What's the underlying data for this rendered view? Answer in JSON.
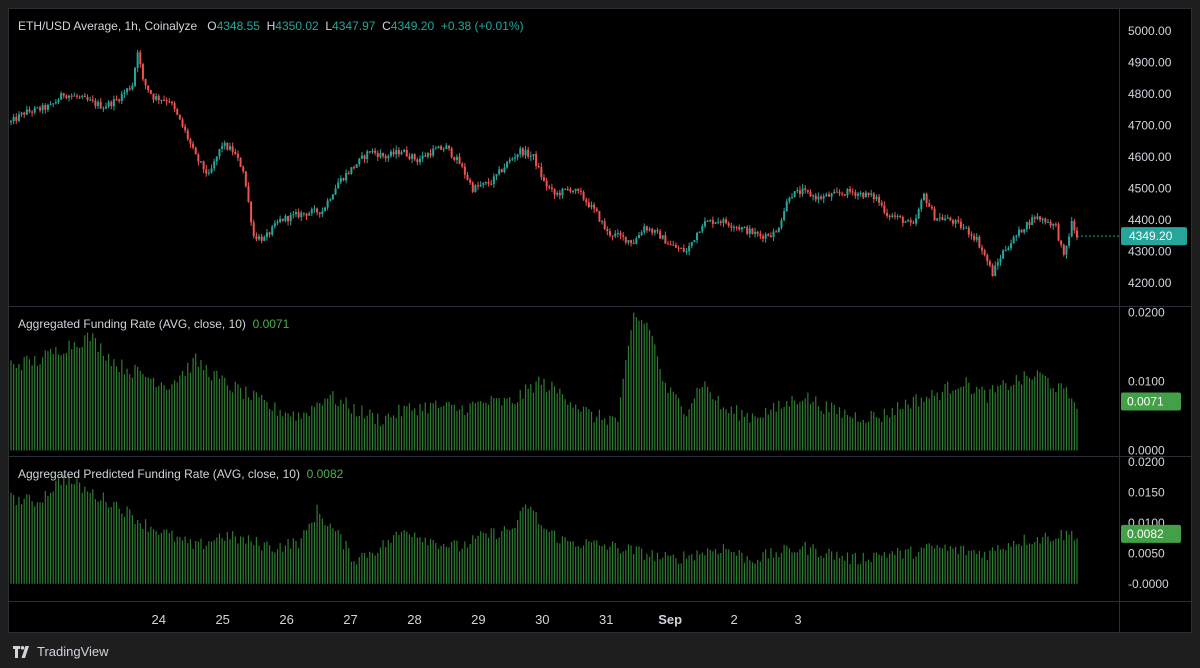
{
  "legend": {
    "price": {
      "name": "ETH/USD Average, 1h, Coinalyze",
      "o_label": "O",
      "o": "4348.55",
      "h_label": "H",
      "h": "4350.02",
      "l_label": "L",
      "l": "4347.97",
      "c_label": "C",
      "c": "4349.20",
      "change": "+0.38 (+0.01%)"
    },
    "funding": {
      "name": "Aggregated Funding Rate (AVG, close, 10)",
      "value": "0.0071"
    },
    "predicted": {
      "name": "Aggregated Predicted Funding Rate (AVG, close, 10)",
      "value": "0.0082"
    }
  },
  "brand": {
    "name": "TradingView",
    "logo_icon": "tradingview-logo-icon"
  },
  "colors": {
    "up": "#26a69a",
    "down": "#ef5350",
    "bar": "#2e7d32",
    "last_price": "#26a69a",
    "funding_badge": "#43a047"
  },
  "chart_data": [
    {
      "type": "candlestick",
      "title": "ETH/USD Average, 1h, Coinalyze",
      "ylim": [
        4150,
        5050
      ],
      "yticks": [
        "5000.00",
        "4900.00",
        "4800.00",
        "4700.00",
        "4600.00",
        "4500.00",
        "4400.00",
        "4300.00",
        "4200.00"
      ],
      "last_price": "4349.20",
      "x_ticks": [
        "24",
        "25",
        "26",
        "27",
        "28",
        "29",
        "30",
        "31",
        "Sep",
        "2",
        "3"
      ],
      "hours_per_day": 24,
      "anchors": [
        [
          0,
          4710
        ],
        [
          5,
          4740
        ],
        [
          15,
          4760
        ],
        [
          20,
          4800
        ],
        [
          25,
          4790
        ],
        [
          35,
          4760
        ],
        [
          40,
          4780
        ],
        [
          46,
          4830
        ],
        [
          48,
          4940
        ],
        [
          50,
          4840
        ],
        [
          54,
          4790
        ],
        [
          60,
          4780
        ],
        [
          66,
          4680
        ],
        [
          70,
          4600
        ],
        [
          75,
          4540
        ],
        [
          80,
          4640
        ],
        [
          84,
          4620
        ],
        [
          88,
          4560
        ],
        [
          92,
          4350
        ],
        [
          96,
          4340
        ],
        [
          102,
          4400
        ],
        [
          110,
          4420
        ],
        [
          118,
          4430
        ],
        [
          124,
          4520
        ],
        [
          130,
          4570
        ],
        [
          136,
          4620
        ],
        [
          142,
          4600
        ],
        [
          148,
          4620
        ],
        [
          154,
          4590
        ],
        [
          160,
          4620
        ],
        [
          165,
          4630
        ],
        [
          170,
          4580
        ],
        [
          175,
          4500
        ],
        [
          182,
          4520
        ],
        [
          188,
          4580
        ],
        [
          193,
          4620
        ],
        [
          198,
          4600
        ],
        [
          202,
          4520
        ],
        [
          206,
          4480
        ],
        [
          212,
          4500
        ],
        [
          216,
          4480
        ],
        [
          222,
          4420
        ],
        [
          226,
          4360
        ],
        [
          230,
          4350
        ],
        [
          236,
          4330
        ],
        [
          240,
          4380
        ],
        [
          246,
          4350
        ],
        [
          250,
          4320
        ],
        [
          256,
          4300
        ],
        [
          262,
          4390
        ],
        [
          268,
          4400
        ],
        [
          272,
          4390
        ],
        [
          278,
          4370
        ],
        [
          284,
          4350
        ],
        [
          290,
          4360
        ],
        [
          295,
          4480
        ],
        [
          300,
          4490
        ],
        [
          306,
          4470
        ],
        [
          312,
          4480
        ],
        [
          318,
          4490
        ],
        [
          324,
          4480
        ],
        [
          328,
          4470
        ],
        [
          332,
          4420
        ],
        [
          338,
          4400
        ],
        [
          342,
          4380
        ],
        [
          346,
          4480
        ],
        [
          350,
          4410
        ],
        [
          356,
          4400
        ],
        [
          362,
          4370
        ],
        [
          366,
          4340
        ],
        [
          370,
          4270
        ],
        [
          372,
          4230
        ],
        [
          376,
          4300
        ],
        [
          380,
          4340
        ],
        [
          384,
          4380
        ],
        [
          388,
          4410
        ],
        [
          392,
          4400
        ],
        [
          396,
          4380
        ],
        [
          399,
          4280
        ],
        [
          402,
          4390
        ],
        [
          404,
          4349.2
        ]
      ]
    },
    {
      "type": "bar",
      "title": "Aggregated Funding Rate (AVG, close, 10)",
      "ylim": [
        -0.0005,
        0.0205
      ],
      "yticks": [
        "0.0200",
        "0.0100",
        "0.0000"
      ],
      "last_value": "0.0071",
      "anchors": [
        [
          0,
          0.0125
        ],
        [
          10,
          0.013
        ],
        [
          20,
          0.015
        ],
        [
          30,
          0.0165
        ],
        [
          40,
          0.0125
        ],
        [
          50,
          0.011
        ],
        [
          60,
          0.0095
        ],
        [
          70,
          0.013
        ],
        [
          80,
          0.01
        ],
        [
          90,
          0.008
        ],
        [
          100,
          0.006
        ],
        [
          110,
          0.005
        ],
        [
          120,
          0.008
        ],
        [
          130,
          0.006
        ],
        [
          140,
          0.0045
        ],
        [
          150,
          0.006
        ],
        [
          160,
          0.0065
        ],
        [
          170,
          0.006
        ],
        [
          180,
          0.007
        ],
        [
          190,
          0.007
        ],
        [
          200,
          0.01
        ],
        [
          210,
          0.008
        ],
        [
          220,
          0.005
        ],
        [
          230,
          0.0045
        ],
        [
          236,
          0.0195
        ],
        [
          242,
          0.018
        ],
        [
          248,
          0.009
        ],
        [
          256,
          0.006
        ],
        [
          262,
          0.01
        ],
        [
          270,
          0.006
        ],
        [
          280,
          0.005
        ],
        [
          290,
          0.006
        ],
        [
          300,
          0.008
        ],
        [
          310,
          0.006
        ],
        [
          320,
          0.005
        ],
        [
          330,
          0.005
        ],
        [
          340,
          0.007
        ],
        [
          350,
          0.008
        ],
        [
          360,
          0.01
        ],
        [
          370,
          0.008
        ],
        [
          380,
          0.01
        ],
        [
          390,
          0.011
        ],
        [
          397,
          0.009
        ],
        [
          404,
          0.0071
        ]
      ]
    },
    {
      "type": "bar",
      "title": "Aggregated Predicted Funding Rate (AVG, close, 10)",
      "ylim": [
        -0.0025,
        0.0205
      ],
      "yticks": [
        "0.0200",
        "0.0150",
        "0.0100",
        "0.0050",
        "-0.0000"
      ],
      "last_value": "0.0082",
      "anchors": [
        [
          0,
          0.014
        ],
        [
          10,
          0.0135
        ],
        [
          20,
          0.0175
        ],
        [
          30,
          0.015
        ],
        [
          40,
          0.013
        ],
        [
          50,
          0.01
        ],
        [
          60,
          0.008
        ],
        [
          70,
          0.006
        ],
        [
          80,
          0.008
        ],
        [
          90,
          0.007
        ],
        [
          100,
          0.006
        ],
        [
          110,
          0.007
        ],
        [
          116,
          0.012
        ],
        [
          124,
          0.008
        ],
        [
          130,
          0.004
        ],
        [
          140,
          0.006
        ],
        [
          150,
          0.009
        ],
        [
          160,
          0.007
        ],
        [
          170,
          0.006
        ],
        [
          180,
          0.008
        ],
        [
          190,
          0.009
        ],
        [
          196,
          0.013
        ],
        [
          202,
          0.009
        ],
        [
          210,
          0.007
        ],
        [
          220,
          0.0065
        ],
        [
          230,
          0.006
        ],
        [
          240,
          0.005
        ],
        [
          250,
          0.004
        ],
        [
          260,
          0.005
        ],
        [
          270,
          0.006
        ],
        [
          280,
          0.004
        ],
        [
          290,
          0.005
        ],
        [
          300,
          0.006
        ],
        [
          310,
          0.005
        ],
        [
          320,
          0.004
        ],
        [
          330,
          0.005
        ],
        [
          340,
          0.005
        ],
        [
          350,
          0.006
        ],
        [
          360,
          0.0055
        ],
        [
          370,
          0.005
        ],
        [
          380,
          0.007
        ],
        [
          390,
          0.0075
        ],
        [
          396,
          0.008
        ],
        [
          404,
          0.0082
        ]
      ]
    }
  ]
}
